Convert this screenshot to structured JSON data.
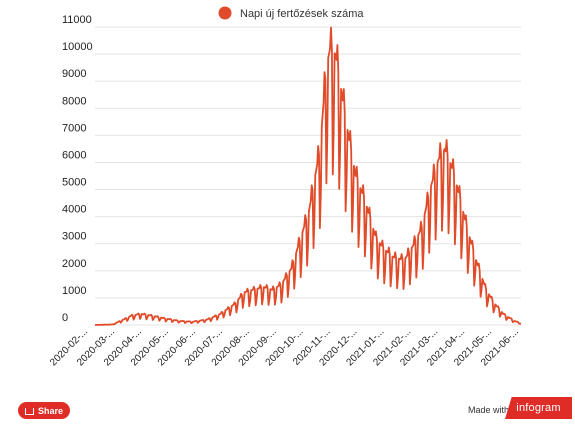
{
  "colors": {
    "series": "#e04c2a",
    "share_bg": "#e02c26",
    "brand_bg": "#e02c26"
  },
  "footer": {
    "share_label": "Share",
    "share_icon": "share-icon",
    "made_with": "Made with",
    "brand": "infogram"
  },
  "chart_data": {
    "type": "line",
    "legend_position": "top-center",
    "grid": true,
    "ylim": [
      0,
      11000
    ],
    "yticks": [
      0,
      1000,
      2000,
      3000,
      4000,
      5000,
      6000,
      7000,
      8000,
      9000,
      10000,
      11000
    ],
    "xtick_labels": [
      "2020-02-...",
      "2020-03-...",
      "2020-04-...",
      "2020-05-...",
      "2020-06-...",
      "2020-07-...",
      "2020-08-...",
      "2020-09-...",
      "2020-10-...",
      "2020-11-...",
      "2020-12-...",
      "2021-01-...",
      "2021-02-...",
      "2021-03-...",
      "2021-04-...",
      "2021-05-...",
      "2021-06-..."
    ],
    "series": [
      {
        "name": "Napi új fertőzések száma",
        "points": [
          [
            "2020-03-01",
            0
          ],
          [
            "2020-03-20",
            20
          ],
          [
            "2020-04-01",
            200
          ],
          [
            "2020-04-10",
            350
          ],
          [
            "2020-04-20",
            410
          ],
          [
            "2020-05-01",
            350
          ],
          [
            "2020-05-15",
            250
          ],
          [
            "2020-06-01",
            150
          ],
          [
            "2020-06-15",
            120
          ],
          [
            "2020-07-01",
            200
          ],
          [
            "2020-07-15",
            400
          ],
          [
            "2020-08-01",
            800
          ],
          [
            "2020-08-10",
            1200
          ],
          [
            "2020-08-20",
            1300
          ],
          [
            "2020-09-01",
            1400
          ],
          [
            "2020-09-10",
            1300
          ],
          [
            "2020-09-20",
            1500
          ],
          [
            "2020-10-01",
            2100
          ],
          [
            "2020-10-10",
            3100
          ],
          [
            "2020-10-20",
            4200
          ],
          [
            "2020-11-01",
            6500
          ],
          [
            "2020-11-08",
            9500
          ],
          [
            "2020-11-12",
            10200
          ],
          [
            "2020-11-18",
            10000
          ],
          [
            "2020-11-25",
            8500
          ],
          [
            "2020-12-01",
            7200
          ],
          [
            "2020-12-10",
            5500
          ],
          [
            "2020-12-20",
            4600
          ],
          [
            "2021-01-01",
            3200
          ],
          [
            "2021-01-10",
            2800
          ],
          [
            "2021-01-20",
            2500
          ],
          [
            "2021-02-01",
            2400
          ],
          [
            "2021-02-10",
            2900
          ],
          [
            "2021-02-20",
            3600
          ],
          [
            "2021-03-01",
            5000
          ],
          [
            "2021-03-10",
            6100
          ],
          [
            "2021-03-17",
            6500
          ],
          [
            "2021-03-25",
            5800
          ],
          [
            "2021-04-01",
            4900
          ],
          [
            "2021-04-10",
            3600
          ],
          [
            "2021-04-20",
            2400
          ],
          [
            "2021-05-01",
            1300
          ],
          [
            "2021-05-10",
            800
          ],
          [
            "2021-05-20",
            400
          ],
          [
            "2021-06-01",
            150
          ],
          [
            "2021-06-08",
            60
          ]
        ]
      }
    ]
  }
}
